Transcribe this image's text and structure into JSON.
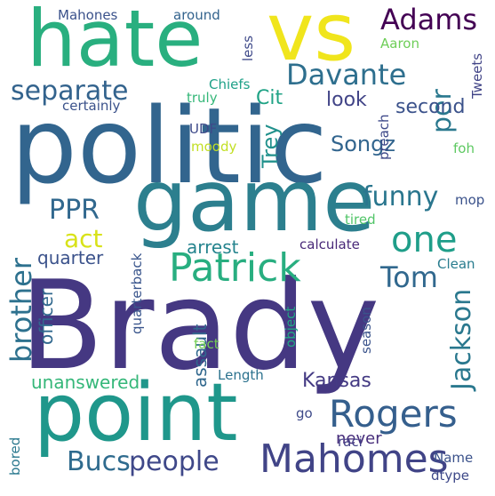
{
  "words": [
    {
      "text": "Brady",
      "color": "#453882"
    },
    {
      "text": "politic",
      "color": "#32658e"
    },
    {
      "text": "game",
      "color": "#2c7f8e"
    },
    {
      "text": "point",
      "color": "#1f978b"
    },
    {
      "text": "hate",
      "color": "#29af7f"
    },
    {
      "text": "vs",
      "color": "#f0e51c"
    },
    {
      "text": "Patrick",
      "color": "#28ae80"
    },
    {
      "text": "Mahomes",
      "color": "#414487"
    },
    {
      "text": "Rogers",
      "color": "#355f8d"
    },
    {
      "text": "Adams",
      "color": "#440154"
    },
    {
      "text": "Davante",
      "color": "#2e6f8e"
    },
    {
      "text": "separate",
      "color": "#33638d"
    },
    {
      "text": "one",
      "color": "#1f9e89"
    },
    {
      "text": "funny",
      "color": "#2a768e"
    },
    {
      "text": "Tom",
      "color": "#31688e"
    },
    {
      "text": "Jackson",
      "color": "#2a788e"
    },
    {
      "text": "brother",
      "color": "#2d718e"
    },
    {
      "text": "people",
      "color": "#3f4889"
    },
    {
      "text": "Bucs",
      "color": "#2f6b8e"
    },
    {
      "text": "PPR",
      "color": "#31688e"
    },
    {
      "text": "act",
      "color": "#d8e219"
    },
    {
      "text": "per",
      "color": "#2a788e"
    },
    {
      "text": "Songz",
      "color": "#32658e"
    },
    {
      "text": "Trey",
      "color": "#21918c"
    },
    {
      "text": "second",
      "color": "#3b528b"
    },
    {
      "text": "look",
      "color": "#414487"
    },
    {
      "text": "Cit",
      "color": "#20a386"
    },
    {
      "text": "Kansas",
      "color": "#443a83"
    },
    {
      "text": "unanswered",
      "color": "#35b779"
    },
    {
      "text": "officer",
      "color": "#31688e"
    },
    {
      "text": "assault",
      "color": "#31688e"
    },
    {
      "text": "quarter",
      "color": "#3b528b"
    },
    {
      "text": "arrest",
      "color": "#25848e"
    },
    {
      "text": "never",
      "color": "#472d7b"
    },
    {
      "text": "Mahones",
      "color": "#3b528b"
    },
    {
      "text": "around",
      "color": "#33638d"
    },
    {
      "text": "less",
      "color": "#3e4989"
    },
    {
      "text": "Aaron",
      "color": "#6ece58"
    },
    {
      "text": "Tweets",
      "color": "#414487"
    },
    {
      "text": "Chiefs",
      "color": "#1fa188"
    },
    {
      "text": "certainly",
      "color": "#3b528b"
    },
    {
      "text": "truly",
      "color": "#35b779"
    },
    {
      "text": "UDF",
      "color": "#3e4a89"
    },
    {
      "text": "moody",
      "color": "#c2df23"
    },
    {
      "text": "preach",
      "color": "#3e4989"
    },
    {
      "text": "foh",
      "color": "#5ec962"
    },
    {
      "text": "mop",
      "color": "#3b528b"
    },
    {
      "text": "tired",
      "color": "#52c569"
    },
    {
      "text": "calculate",
      "color": "#482878"
    },
    {
      "text": "Clean",
      "color": "#287c8e"
    },
    {
      "text": "quarterback",
      "color": "#39558c"
    },
    {
      "text": "fact",
      "color": "#75d054"
    },
    {
      "text": "object",
      "color": "#22a884"
    },
    {
      "text": "season",
      "color": "#3a538b"
    },
    {
      "text": "Length",
      "color": "#2c728e"
    },
    {
      "text": "go",
      "color": "#3e4a89"
    },
    {
      "text": "raci",
      "color": "#424086"
    },
    {
      "text": "Name",
      "color": "#3b528b"
    },
    {
      "text": "dtype",
      "color": "#3e4989"
    },
    {
      "text": "bored",
      "color": "#2a788e"
    }
  ]
}
